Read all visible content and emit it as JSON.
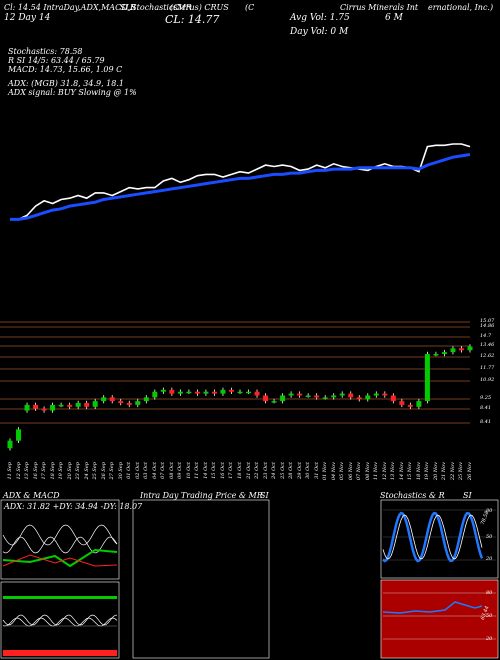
{
  "header": {
    "line1": "Cl: 14.54 IntraDay,ADX,MACD,R",
    "line1b": "SI,StochasticsMR",
    "line1c": "(Cirrus) CRUS",
    "line1d": "(C",
    "line1e": "Cirrus Minerals Int",
    "line1f": "ernational, Inc.)",
    "line2": "12 Day  14",
    "cl": "CL: 14.77",
    "avg_vol": "Avg Vol: 1.75",
    "avg_vol_unit": "6  M",
    "day_vol": "Day Vol: 0  M",
    "stoch": "Stochastics: 78.58",
    "rsi": "R          SI 14/5: 63.44 / 65.79",
    "macd": "MACD: 14.73,  15.66, 1.09 C",
    "adx": "ADX:                         (MGB) 31.8,  34.9,  18.1",
    "adx_signal": "ADX  signal:                              BUY Slowing @ 1%"
  },
  "price_labels": [
    "15.07",
    "14.86",
    "14.7",
    "13.46",
    "12.62",
    "11.77",
    "10.92",
    "9.25",
    "8.41",
    "8.41"
  ],
  "x_labels": [
    "11 Sep",
    "12 Sep",
    "13 Sep",
    "16 Sep",
    "17 Sep",
    "18 Sep",
    "19 Sep",
    "20 Sep",
    "23 Sep",
    "24 Sep",
    "25 Sep",
    "26 Sep",
    "27 Sep",
    "30 Sep",
    "01 Oct",
    "02 Oct",
    "03 Oct",
    "04 Oct",
    "07 Oct",
    "08 Oct",
    "09 Oct",
    "10 Oct",
    "11 Oct",
    "14 Oct",
    "15 Oct",
    "16 Oct",
    "17 Oct",
    "18 Oct",
    "21 Oct",
    "22 Oct",
    "23 Oct",
    "24 Oct",
    "25 Oct",
    "28 Oct",
    "29 Oct",
    "30 Oct",
    "31 Oct",
    "01 Nov",
    "04 Nov",
    "05 Nov",
    "06 Nov",
    "07 Nov",
    "08 Nov",
    "11 Nov",
    "12 Nov",
    "13 Nov",
    "14 Nov",
    "15 Nov",
    "18 Nov",
    "19 Nov",
    "20 Nov",
    "21 Nov",
    "22 Nov",
    "25 Nov",
    "26 Nov"
  ],
  "panels": {
    "adx_title": "ADX  & MACD",
    "adx_vals": "ADX: 31.82  +DY: 34.94  -DY: 18.07",
    "intra_title": "Intra  Day Trading Price  & MR",
    "intra_title2": "SI",
    "stoch_title": "Stochastics  & R",
    "stoch_title2": "SI",
    "stoch_ticks": [
      "80",
      "50",
      "20"
    ],
    "stoch_value": "78.58",
    "rsi_ticks": [
      "80",
      "50",
      "20"
    ],
    "rsi_value": "63.44"
  },
  "colors": {
    "up": "#00cc00",
    "down": "#ff2020",
    "ema": "#1a4dff",
    "rsi_bg": "#aa0000",
    "stoch_line": "#2277ff"
  },
  "chart_data": [
    {
      "type": "line",
      "title": "",
      "series": [
        {
          "values": [
            8.6,
            8.6,
            8.9,
            9.6,
            10.0,
            9.8,
            10.1,
            10.2,
            10.4,
            10.2,
            10.6,
            10.6,
            10.4,
            10.7,
            11.0,
            10.9,
            11.0,
            11.0,
            11.5,
            11.7,
            11.4,
            11.6,
            11.9,
            12.0,
            12.0,
            11.8,
            12.0,
            12.2,
            12.1,
            12.4,
            12.7,
            12.6,
            12.7,
            12.6,
            12.3,
            12.4,
            12.7,
            12.5,
            12.8,
            12.6,
            12.5,
            12.4,
            12.3,
            12.6,
            12.8,
            12.6,
            12.6,
            12.5,
            12.2,
            14.1,
            14.2,
            14.2,
            14.3,
            14.3,
            14.1
          ]
        },
        {
          "values": [
            8.6,
            8.6,
            8.7,
            8.9,
            9.1,
            9.3,
            9.4,
            9.6,
            9.7,
            9.8,
            9.9,
            10.1,
            10.2,
            10.3,
            10.4,
            10.5,
            10.6,
            10.7,
            10.8,
            10.9,
            11.0,
            11.1,
            11.2,
            11.3,
            11.4,
            11.5,
            11.6,
            11.7,
            11.7,
            11.8,
            11.9,
            12.0,
            12.0,
            12.1,
            12.1,
            12.2,
            12.3,
            12.3,
            12.4,
            12.4,
            12.4,
            12.5,
            12.5,
            12.5,
            12.5,
            12.5,
            12.5,
            12.5,
            12.4,
            12.7,
            12.9,
            13.1,
            13.3,
            13.4,
            13.5
          ]
        }
      ]
    },
    {
      "type": "candlestick",
      "x": [
        "11 Sep",
        "12 Sep",
        "13 Sep",
        "16 Sep",
        "17 Sep",
        "18 Sep",
        "19 Sep",
        "20 Sep",
        "23 Sep",
        "24 Sep",
        "25 Sep",
        "26 Sep",
        "27 Sep",
        "30 Sep",
        "01 Oct",
        "02 Oct",
        "03 Oct",
        "04 Oct",
        "07 Oct",
        "08 Oct",
        "09 Oct",
        "10 Oct",
        "11 Oct",
        "14 Oct",
        "15 Oct",
        "16 Oct",
        "17 Oct",
        "18 Oct",
        "21 Oct",
        "22 Oct",
        "23 Oct",
        "24 Oct",
        "25 Oct",
        "28 Oct",
        "29 Oct",
        "30 Oct",
        "31 Oct",
        "01 Nov",
        "04 Nov",
        "05 Nov",
        "06 Nov",
        "07 Nov",
        "08 Nov",
        "11 Nov",
        "12 Nov",
        "13 Nov",
        "14 Nov",
        "15 Nov",
        "18 Nov",
        "19 Nov",
        "20 Nov",
        "21 Nov",
        "22 Nov",
        "25 Nov",
        "26 Nov"
      ],
      "open": [
        8.6,
        9.0,
        10.6,
        10.9,
        10.7,
        10.6,
        10.9,
        10.9,
        10.8,
        11.0,
        10.8,
        11.1,
        11.3,
        11.1,
        11.0,
        10.9,
        11.1,
        11.3,
        11.6,
        11.7,
        11.5,
        11.6,
        11.6,
        11.5,
        11.6,
        11.5,
        11.7,
        11.6,
        11.6,
        11.6,
        11.4,
        11.1,
        11.1,
        11.4,
        11.5,
        11.4,
        11.4,
        11.3,
        11.3,
        11.4,
        11.5,
        11.3,
        11.2,
        11.4,
        11.5,
        11.4,
        11.1,
        10.9,
        10.8,
        11.1,
        13.6,
        13.6,
        13.7,
        13.9,
        13.8
      ],
      "close": [
        9.0,
        9.6,
        10.9,
        10.7,
        10.6,
        10.9,
        10.9,
        10.8,
        11.0,
        10.8,
        11.1,
        11.3,
        11.1,
        11.0,
        10.9,
        11.1,
        11.3,
        11.6,
        11.7,
        11.5,
        11.6,
        11.6,
        11.5,
        11.6,
        11.5,
        11.7,
        11.6,
        11.6,
        11.6,
        11.4,
        11.1,
        11.1,
        11.4,
        11.5,
        11.4,
        11.4,
        11.3,
        11.3,
        11.4,
        11.5,
        11.3,
        11.2,
        11.4,
        11.5,
        11.4,
        11.1,
        10.9,
        10.8,
        11.1,
        13.6,
        13.6,
        13.7,
        13.9,
        13.8,
        14.0
      ],
      "ylim": [
        8.4,
        15.3
      ]
    }
  ]
}
